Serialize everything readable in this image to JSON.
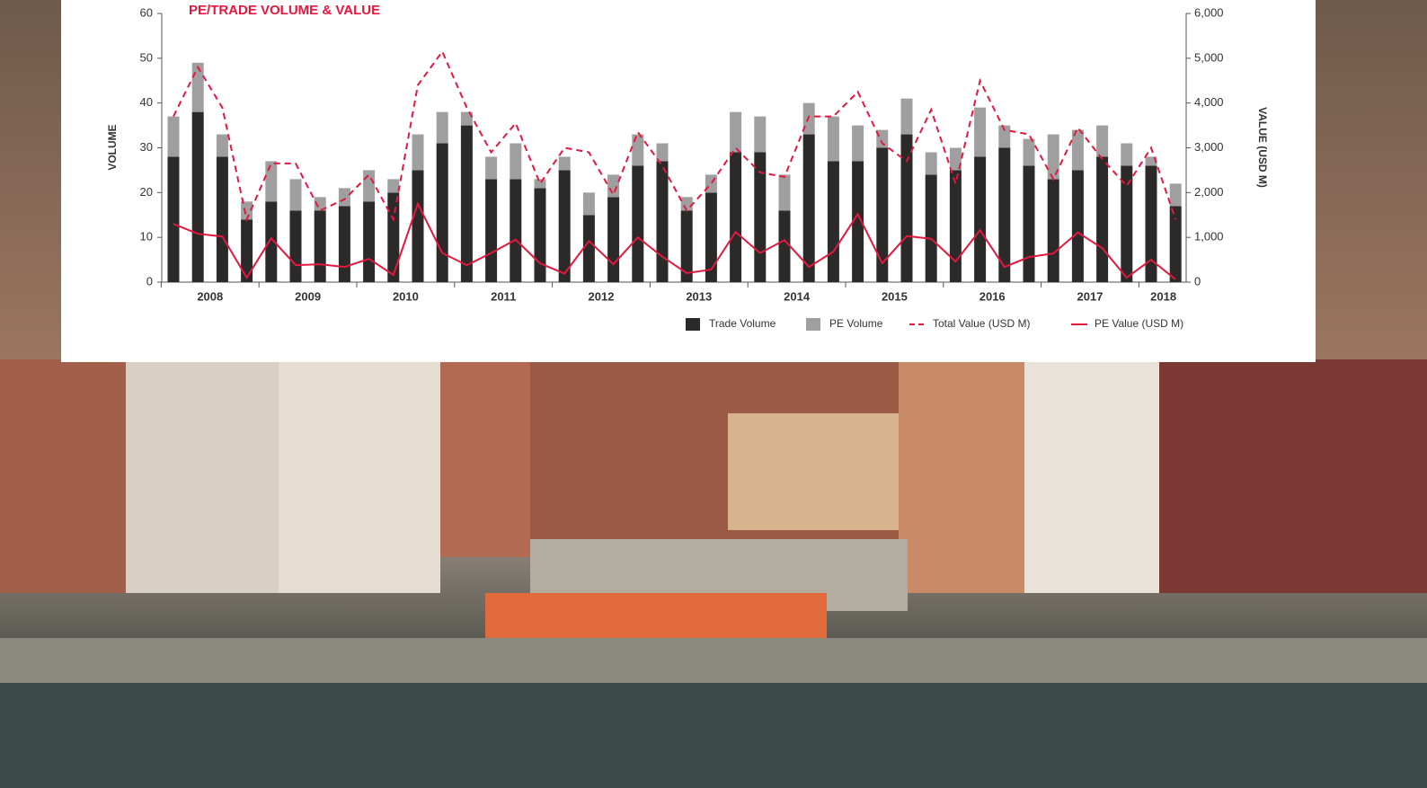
{
  "chart_data": {
    "type": "bar",
    "title": "PE/TRADE VOLUME & VALUE",
    "y_label": "VOLUME",
    "y2_label": "VALUE (USD M)",
    "stacked": true,
    "x_groups": [
      "2008",
      "2009",
      "2010",
      "2011",
      "2012",
      "2013",
      "2014",
      "2015",
      "2016",
      "2017",
      "2018"
    ],
    "categories": [
      null,
      null,
      null,
      null,
      null,
      null,
      null,
      null,
      null,
      null,
      null,
      null,
      null,
      null,
      null,
      null,
      null,
      null,
      null,
      null,
      null,
      null,
      null,
      null,
      null,
      null,
      null,
      null,
      null,
      null,
      null,
      null,
      null,
      null,
      null,
      null,
      null,
      null,
      null,
      null,
      null,
      null
    ],
    "series": [
      {
        "name": "Trade Volume",
        "type": "bar",
        "color": "#2b2a29",
        "values": [
          28,
          38,
          28,
          14,
          18,
          16,
          16,
          17,
          18,
          20,
          25,
          31,
          35,
          23,
          23,
          21,
          25,
          15,
          19,
          26,
          27,
          16,
          20,
          29,
          29,
          16,
          33,
          27,
          27,
          30,
          33,
          24,
          25,
          28,
          30,
          26,
          23,
          25,
          28,
          26,
          26,
          17
        ]
      },
      {
        "name": "PE Volume",
        "type": "bar",
        "color": "#a09f9f",
        "values": [
          9,
          11,
          5,
          4,
          9,
          7,
          3,
          4,
          7,
          3,
          8,
          7,
          3,
          5,
          8,
          2,
          3,
          5,
          5,
          7,
          4,
          3,
          4,
          9,
          8,
          8,
          7,
          10,
          8,
          4,
          8,
          5,
          5,
          11,
          5,
          6,
          10,
          9,
          7,
          5,
          2,
          5
        ]
      },
      {
        "name": "Total Value (USD M)",
        "type": "line",
        "dashed": true,
        "axis": "y2",
        "color": "#e4173e",
        "values": [
          3700,
          4800,
          3900,
          1400,
          2650,
          2650,
          1600,
          1850,
          2400,
          1400,
          4400,
          5150,
          3900,
          2900,
          3550,
          2200,
          3000,
          2900,
          1950,
          3350,
          2600,
          1600,
          2200,
          3000,
          2450,
          2350,
          3700,
          3700,
          4250,
          3100,
          2700,
          3850,
          2200,
          4500,
          3400,
          3300,
          2300,
          3450,
          2750,
          2150,
          3000,
          1400
        ]
      },
      {
        "name": "PE Value (USD M)",
        "type": "line",
        "dashed": false,
        "axis": "y2",
        "color": "#e4173e",
        "values": [
          1300,
          1080,
          1020,
          100,
          980,
          380,
          400,
          340,
          520,
          160,
          1750,
          650,
          380,
          650,
          950,
          420,
          190,
          920,
          400,
          1000,
          570,
          200,
          280,
          1120,
          650,
          940,
          340,
          680,
          1520,
          420,
          1030,
          970,
          460,
          1160,
          340,
          560,
          640,
          1110,
          760,
          100,
          500,
          60
        ]
      }
    ],
    "ylim": [
      0,
      60
    ],
    "yticks": [
      0,
      10,
      20,
      30,
      40,
      50,
      60
    ],
    "y2lim": [
      0,
      6000
    ],
    "y2ticks": [
      0,
      {
        "value": 1000,
        "label": "1,000"
      },
      {
        "value": 2000,
        "label": "2,000"
      },
      {
        "value": 3000,
        "label": "3,000"
      },
      {
        "value": 4000,
        "label": "4,000"
      },
      {
        "value": 5000,
        "label": "5,000"
      },
      {
        "value": 6000,
        "label": "6,000"
      }
    ],
    "legend": "bottom-right"
  }
}
